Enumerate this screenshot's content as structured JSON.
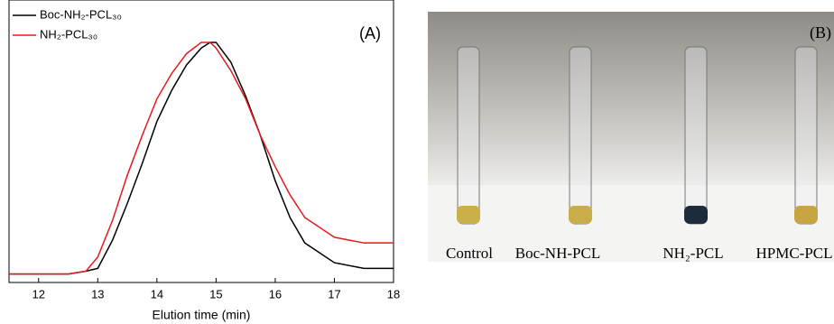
{
  "chart_data": {
    "type": "line",
    "panel_label": "(A)",
    "x_label": "Elution time (min)",
    "x": [
      11.5,
      12,
      12.5,
      12.8,
      13,
      13.25,
      13.5,
      13.75,
      14,
      14.25,
      14.5,
      14.75,
      14.9,
      15,
      15.25,
      15.5,
      15.75,
      16,
      16.25,
      16.5,
      17,
      17.5,
      18
    ],
    "series": [
      {
        "name": "Boc-NH₂-PCL₃₀",
        "color": "#000000",
        "values": [
          0.03,
          0.03,
          0.03,
          0.04,
          0.05,
          0.15,
          0.28,
          0.42,
          0.57,
          0.68,
          0.77,
          0.83,
          0.85,
          0.85,
          0.78,
          0.66,
          0.52,
          0.36,
          0.23,
          0.14,
          0.07,
          0.05,
          0.05
        ]
      },
      {
        "name": "NH₂-PCL₃₀",
        "color": "#e8191c",
        "values": [
          0.03,
          0.03,
          0.03,
          0.04,
          0.09,
          0.22,
          0.38,
          0.52,
          0.65,
          0.74,
          0.81,
          0.85,
          0.85,
          0.83,
          0.75,
          0.65,
          0.52,
          0.41,
          0.31,
          0.23,
          0.16,
          0.14,
          0.14
        ]
      }
    ],
    "xlim": [
      11.5,
      18
    ],
    "xticks": [
      12,
      13,
      14,
      15,
      16,
      17,
      18
    ],
    "ylim": [
      0,
      1
    ],
    "legend": "upper left"
  },
  "photo": {
    "panel_label": "(B)",
    "labels": [
      "Control",
      "Boc-NH-PCL",
      "NH₂-PCL",
      "HPMC-PCL"
    ]
  }
}
